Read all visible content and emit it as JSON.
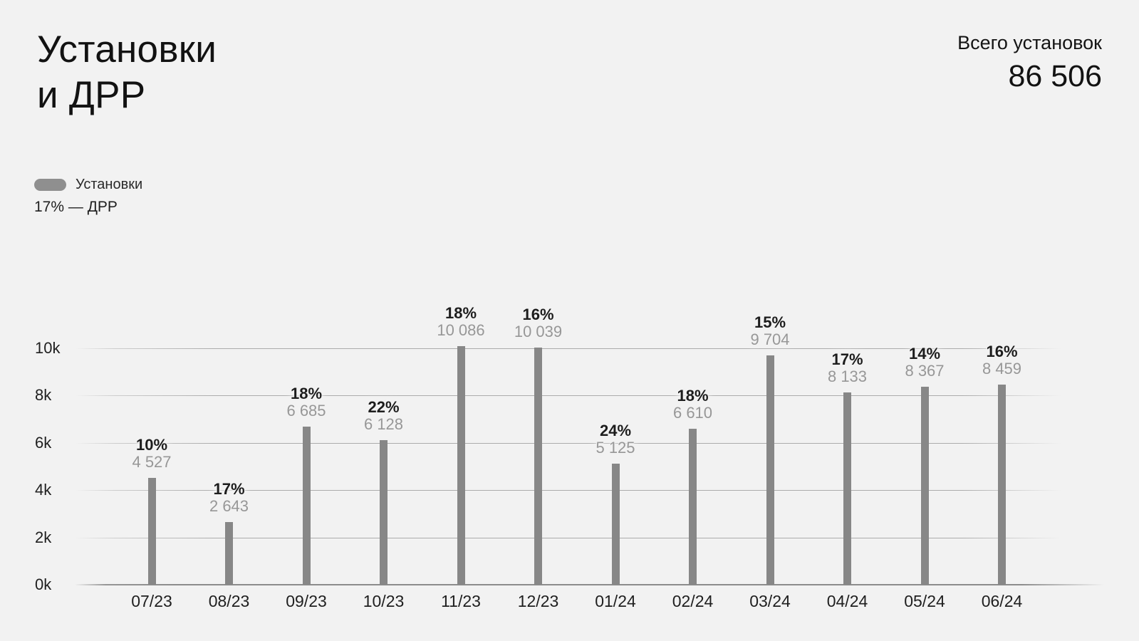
{
  "header": {
    "title": "Установки\nи ДРР",
    "total_label": "Всего установок",
    "total_value": "86 506"
  },
  "legend": {
    "installs_label": "Установки",
    "drr_label": "17% — ДРР"
  },
  "colors": {
    "background": "#f2f2f2",
    "bar": "#878787",
    "legend_swatch": "#8f8f8f",
    "gridline": "#a0a0a0",
    "baseline": "#8c8c8c",
    "percent_text": "#1c1c1c",
    "value_text": "#979797",
    "dark_text": "#121212"
  },
  "chart_data": {
    "type": "bar",
    "title": "Установки и ДРР",
    "categories": [
      "07/23",
      "08/23",
      "09/23",
      "10/23",
      "11/23",
      "12/23",
      "01/24",
      "02/24",
      "03/24",
      "04/24",
      "05/24",
      "06/24"
    ],
    "series": [
      {
        "name": "Установки",
        "values": [
          4527,
          2643,
          6685,
          6128,
          10086,
          10039,
          5125,
          6610,
          9704,
          8133,
          8367,
          8459
        ],
        "labels": [
          "4 527",
          "2 643",
          "6 685",
          "6 128",
          "10 086",
          "10 039",
          "5 125",
          "6 610",
          "9 704",
          "8 133",
          "8 367",
          "8 459"
        ]
      },
      {
        "name": "ДРР",
        "unit": "%",
        "values": [
          10,
          17,
          18,
          22,
          18,
          16,
          24,
          18,
          15,
          17,
          14,
          16
        ],
        "labels": [
          "10%",
          "17%",
          "18%",
          "22%",
          "18%",
          "16%",
          "24%",
          "18%",
          "15%",
          "17%",
          "14%",
          "16%"
        ]
      }
    ],
    "xlabel": "",
    "ylabel": "",
    "ylim": [
      0,
      10000
    ],
    "yticks": {
      "values": [
        0,
        2000,
        4000,
        6000,
        8000,
        10000
      ],
      "labels": [
        "0k",
        "2k",
        "4k",
        "6k",
        "8k",
        "10k"
      ]
    },
    "grid": "horizontal",
    "legend_position": "top-left",
    "total_installs": 86506,
    "average_drr_percent": 17
  }
}
